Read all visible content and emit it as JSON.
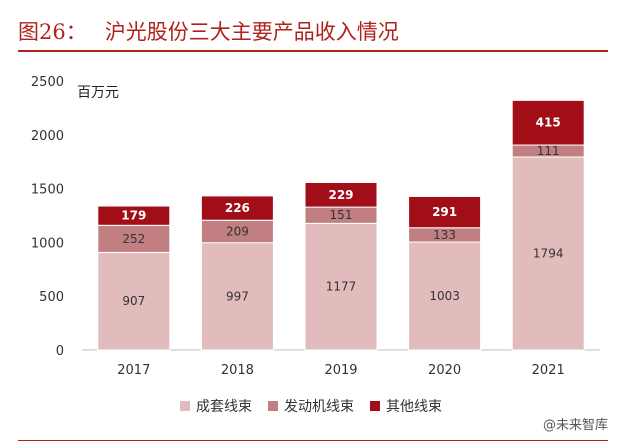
{
  "header": {
    "figure_number": "图26：",
    "title": "沪光股份三大主要产品收入情况"
  },
  "watermark": "@未来智库",
  "chart_data": {
    "type": "bar",
    "stacked": true,
    "categories": [
      "2017",
      "2018",
      "2019",
      "2020",
      "2021"
    ],
    "series": [
      {
        "name": "成套线束",
        "values": [
          907,
          997,
          1177,
          1003,
          1794
        ],
        "color": "#e2bcbc"
      },
      {
        "name": "发动机线束",
        "values": [
          252,
          209,
          151,
          133,
          111
        ],
        "color": "#c17f82"
      },
      {
        "name": "其他线束",
        "values": [
          179,
          226,
          229,
          291,
          415
        ],
        "color": "#a20e18"
      }
    ],
    "ylabel": "百万元",
    "ylim": [
      0,
      2500
    ],
    "yticks": [
      "0",
      "500",
      "1000",
      "1500",
      "2000",
      "2500"
    ],
    "grid": false,
    "legend": "bottom"
  }
}
